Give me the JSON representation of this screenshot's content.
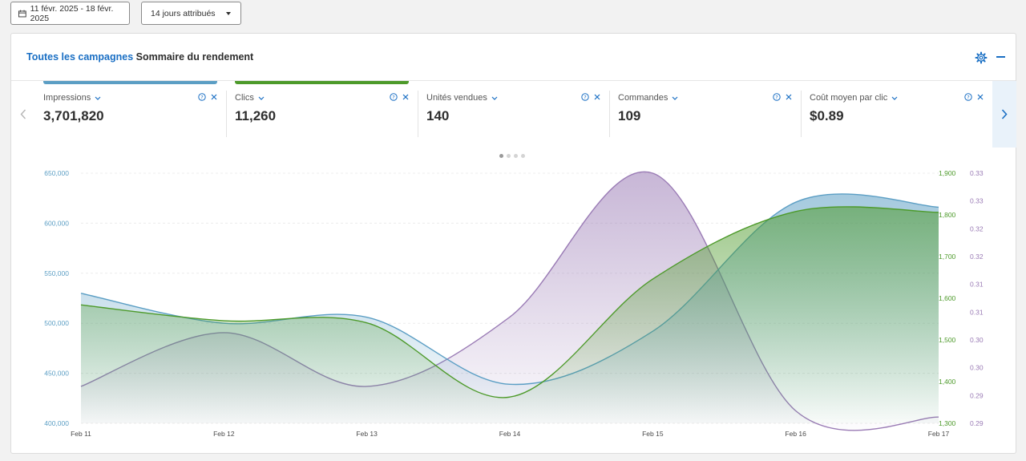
{
  "toolbar": {
    "date_range": "11 févr. 2025 - 18 févr. 2025",
    "attribution": "14 jours attribués"
  },
  "header": {
    "link": "Toutes les campagnes",
    "title": "Sommaire du rendement"
  },
  "metrics": [
    {
      "label": "Impressions",
      "value": "3,701,820",
      "color": "#5b9ec4",
      "selected": true
    },
    {
      "label": "Clics",
      "value": "11,260",
      "color": "#4d9a2a",
      "selected": true
    },
    {
      "label": "Unités vendues",
      "value": "140",
      "selected": false
    },
    {
      "label": "Commandes",
      "value": "109",
      "selected": false
    },
    {
      "label": "Coût moyen par clic",
      "value": "$0.89",
      "selected": false
    }
  ],
  "pagination": {
    "pages": 4,
    "active": 0
  },
  "chart_data": {
    "type": "area",
    "x": [
      "Feb 11",
      "Feb 12",
      "Feb 13",
      "Feb 14",
      "Feb 15",
      "Feb 16",
      "Feb 17"
    ],
    "axes": {
      "left": {
        "ticks": [
          "650,000",
          "600,000",
          "550,000",
          "500,000",
          "450,000",
          "400,000"
        ],
        "ylim": [
          400000,
          650000
        ],
        "color": "#5b9ec4"
      },
      "right1": {
        "ticks": [
          "1,900",
          "1,800",
          "1,700",
          "1,600",
          "1,500",
          "1,400",
          "1,300"
        ],
        "ylim": [
          1300,
          1900
        ],
        "color": "#4d9a2a"
      },
      "right2": {
        "ticks": [
          "0.33",
          "0.33",
          "0.32",
          "0.32",
          "0.31",
          "0.31",
          "0.30",
          "0.30",
          "0.29",
          "0.29"
        ],
        "ylim": [
          0.29,
          0.33
        ],
        "color": "#9a7bb5"
      }
    },
    "series": [
      {
        "axis": "left",
        "color": "#5b9ec4",
        "values": [
          530000,
          500000,
          506000,
          439000,
          492000,
          621000,
          616000
        ]
      },
      {
        "axis": "right1",
        "color": "#4d9a2a",
        "values": [
          1584,
          1546,
          1541,
          1363,
          1646,
          1808,
          1806
        ]
      },
      {
        "axis": "right2",
        "color": "#9a7bb5",
        "values": [
          0.2959,
          0.3045,
          0.2959,
          0.307,
          0.33,
          0.292,
          0.291
        ]
      }
    ],
    "grid": true
  }
}
